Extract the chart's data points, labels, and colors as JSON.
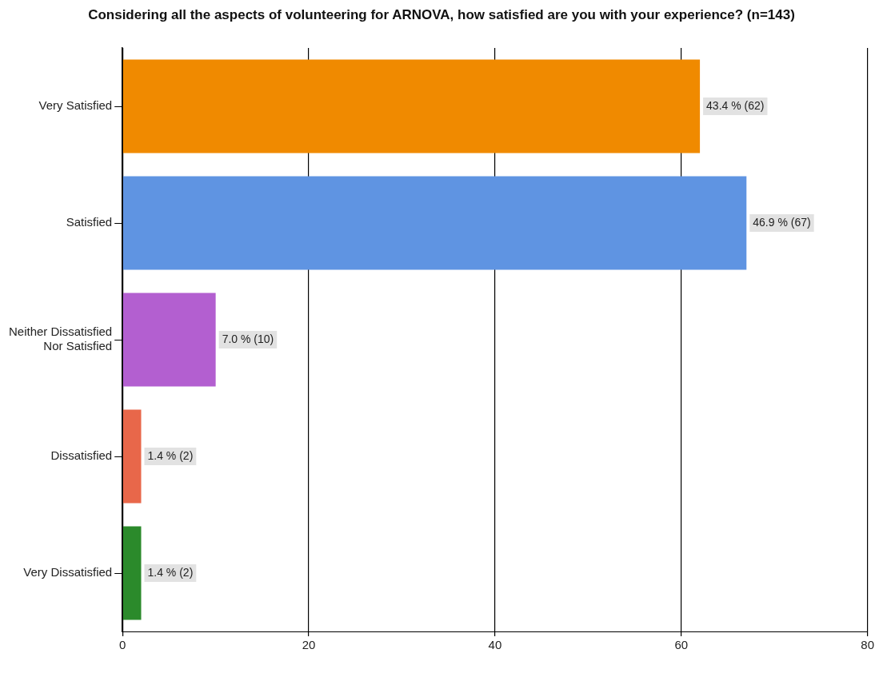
{
  "chart_data": {
    "type": "bar",
    "orientation": "horizontal",
    "title": "Considering all the aspects of volunteering for ARNOVA, how satisfied are you with your experience? (n=143)",
    "categories": [
      "Very Satisfied",
      "Satisfied",
      "Neither Dissatisfied Nor Satisfied",
      "Dissatisfied",
      "Very Dissatisfied"
    ],
    "values": [
      62,
      67,
      10,
      2,
      2
    ],
    "colors": [
      "#f08a00",
      "#5f94e2",
      "#b35fd0",
      "#e8674a",
      "#2b8a2b"
    ],
    "value_labels": [
      "43.4 % (62)",
      "46.9 % (67)",
      "7.0 % (10)",
      "1.4 % (2)",
      "1.4 % (2)"
    ],
    "xlim": [
      0,
      80
    ],
    "xticks": [
      0,
      20,
      40,
      60,
      80
    ],
    "grid": "x",
    "legend": false
  }
}
